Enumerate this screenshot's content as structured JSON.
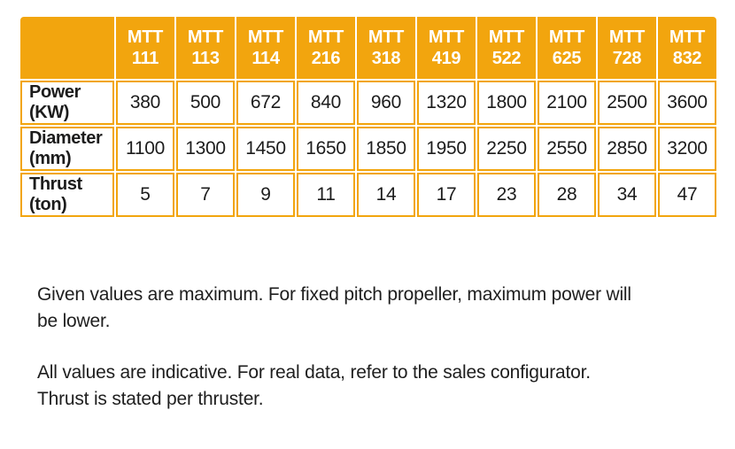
{
  "colors": {
    "orange": "#F2A50E",
    "header_text": "#FFFFFF",
    "body_text": "#1C1C1C"
  },
  "table": {
    "corner_label": "",
    "columns": [
      {
        "line1": "MTT",
        "line2": "111"
      },
      {
        "line1": "MTT",
        "line2": "113"
      },
      {
        "line1": "MTT",
        "line2": "114"
      },
      {
        "line1": "MTT",
        "line2": "216"
      },
      {
        "line1": "MTT",
        "line2": "318"
      },
      {
        "line1": "MTT",
        "line2": "419"
      },
      {
        "line1": "MTT",
        "line2": "522"
      },
      {
        "line1": "MTT",
        "line2": "625"
      },
      {
        "line1": "MTT",
        "line2": "728"
      },
      {
        "line1": "MTT",
        "line2": "832"
      }
    ],
    "rows": [
      {
        "key": "power",
        "label": "Power",
        "unit": "(KW)",
        "values": [
          380,
          500,
          672,
          840,
          960,
          1320,
          1800,
          2100,
          2500,
          3600
        ]
      },
      {
        "key": "diameter",
        "label": "Diameter",
        "unit": "(mm)",
        "values": [
          1100,
          1300,
          1450,
          1650,
          1850,
          1950,
          2250,
          2550,
          2850,
          3200
        ]
      },
      {
        "key": "thrust",
        "label": "Thrust",
        "unit": "(ton)",
        "values": [
          5,
          7,
          9,
          11,
          14,
          17,
          23,
          28,
          34,
          47
        ]
      }
    ]
  },
  "chart_data": {
    "type": "table",
    "categories": [
      "MTT 111",
      "MTT 113",
      "MTT 114",
      "MTT 216",
      "MTT 318",
      "MTT 419",
      "MTT 522",
      "MTT 625",
      "MTT 728",
      "MTT 832"
    ],
    "series": [
      {
        "name": "Power (KW)",
        "values": [
          380,
          500,
          672,
          840,
          960,
          1320,
          1800,
          2100,
          2500,
          3600
        ]
      },
      {
        "name": "Diameter (mm)",
        "values": [
          1100,
          1300,
          1450,
          1650,
          1850,
          1950,
          2250,
          2550,
          2850,
          3200
        ]
      },
      {
        "name": "Thrust (ton)",
        "values": [
          5,
          7,
          9,
          11,
          14,
          17,
          23,
          28,
          34,
          47
        ]
      }
    ],
    "title": ""
  },
  "notes": [
    {
      "text": "Given values are maximum. For fixed pitch propeller, maximum power will be lower.",
      "lines": [
        "Given values are maximum. For fixed pitch propeller, maximum power will",
        "be lower."
      ]
    },
    {
      "text": "All values are indicative. For real data, refer to the sales configurator. Thrust is stated per thruster.",
      "lines": [
        "All values are indicative. For real data, refer to the sales configurator.",
        "Thrust is stated per thruster."
      ]
    }
  ]
}
